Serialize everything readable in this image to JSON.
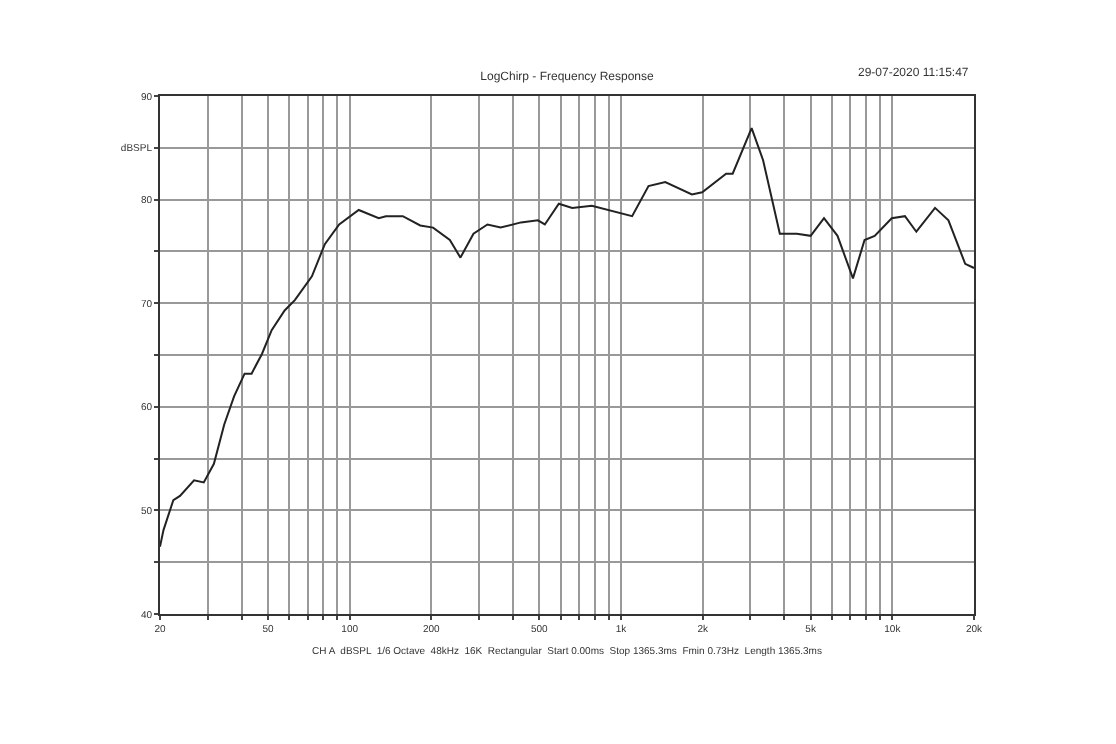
{
  "chart_data": {
    "type": "line",
    "title": "LogChirp - Frequency Response",
    "annotations": [
      "29-07-2020 11:15:47",
      "CH A  dBSPL  1/6 Octave  48kHz  16K  Rectangular  Start 0.00ms  Stop 1365.3ms  Fmin 0.73Hz  Length 1365.3ms"
    ],
    "x": [
      20,
      20.6,
      22.4,
      23.7,
      26.7,
      29,
      31.6,
      34.5,
      37.5,
      41,
      43.5,
      47.5,
      51.6,
      57.6,
      62.8,
      72.6,
      81,
      91.5,
      108,
      128,
      136,
      157,
      182,
      203,
      234,
      256,
      286,
      322,
      360,
      428,
      494,
      524,
      590,
      661,
      781,
      1099,
      1263,
      1456,
      1825,
      1992,
      2440,
      2580,
      3030,
      3340,
      3850,
      4450,
      5000,
      5600,
      6280,
      7160,
      7900,
      8610,
      9950,
      11130,
      12260,
      14370,
      16100,
      18560,
      20000
    ],
    "series": [
      {
        "color": "#222222",
        "values": [
          46.5,
          48.1,
          51.0,
          51.4,
          52.9,
          52.7,
          54.5,
          58.3,
          61.0,
          63.2,
          63.2,
          65.1,
          67.4,
          69.3,
          70.3,
          72.6,
          75.7,
          77.6,
          79.0,
          78.2,
          78.4,
          78.4,
          77.5,
          77.3,
          76.1,
          74.4,
          76.7,
          77.6,
          77.3,
          77.8,
          78.0,
          77.6,
          79.6,
          79.2,
          79.4,
          78.4,
          81.3,
          81.7,
          80.5,
          80.7,
          82.5,
          82.5,
          86.9,
          83.8,
          76.7,
          76.7,
          76.5,
          78.2,
          76.5,
          72.4,
          76.1,
          76.5,
          78.2,
          78.4,
          76.9,
          79.2,
          78.0,
          73.8,
          73.4
        ]
      }
    ],
    "log": "x",
    "xlim": [
      20,
      20000
    ],
    "xticks": [
      20,
      {
        "value": 30,
        "label": null
      },
      {
        "value": 40,
        "label": null
      },
      50,
      {
        "value": 60,
        "label": null
      },
      {
        "value": 70,
        "label": null
      },
      {
        "value": 80,
        "label": null
      },
      {
        "value": 90,
        "label": null
      },
      100,
      200,
      {
        "value": 300,
        "label": null
      },
      {
        "value": 400,
        "label": null
      },
      500,
      {
        "value": 600,
        "label": null
      },
      {
        "value": 700,
        "label": null
      },
      {
        "value": 800,
        "label": null
      },
      {
        "value": 900,
        "label": null
      },
      {
        "value": 1000,
        "label": "1k"
      },
      {
        "value": 2000,
        "label": "2k"
      },
      {
        "value": 3000,
        "label": null
      },
      {
        "value": 4000,
        "label": null
      },
      {
        "value": 5000,
        "label": "5k"
      },
      {
        "value": 6000,
        "label": null
      },
      {
        "value": 7000,
        "label": null
      },
      {
        "value": 8000,
        "label": null
      },
      {
        "value": 9000,
        "label": null
      },
      {
        "value": 10000,
        "label": "10k"
      },
      {
        "value": 20000,
        "label": "20k"
      }
    ],
    "ylim": [
      40,
      90
    ],
    "yticks": [
      40,
      {
        "value": 45,
        "label": null
      },
      50,
      {
        "value": 55,
        "label": null
      },
      60,
      {
        "value": 65,
        "label": null
      },
      70,
      {
        "value": 75,
        "label": null
      },
      80,
      {
        "value": 85,
        "label": "dBSPL"
      },
      90
    ],
    "grid": true,
    "marker": "none",
    "line_style": "solid"
  }
}
